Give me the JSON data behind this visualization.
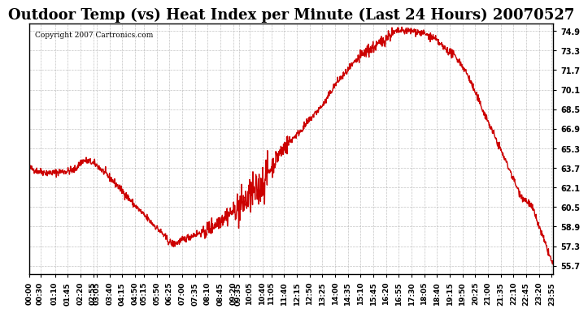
{
  "title": "Outdoor Temp (vs) Heat Index per Minute (Last 24 Hours) 20070527",
  "copyright_text": "Copyright 2007 Cartronics.com",
  "line_color": "#cc0000",
  "background_color": "#ffffff",
  "plot_background": "#ffffff",
  "grid_color": "#aaaaaa",
  "yticks": [
    55.7,
    57.3,
    58.9,
    60.5,
    62.1,
    63.7,
    65.3,
    66.9,
    68.5,
    70.1,
    71.7,
    73.3,
    74.9
  ],
  "ylim": [
    55.0,
    75.5
  ],
  "xlabel_rotation": 90,
  "title_fontsize": 13,
  "xtick_labels": [
    "00:00",
    "00:30",
    "01:10",
    "01:45",
    "02:20",
    "02:55",
    "03:05",
    "03:40",
    "04:15",
    "04:50",
    "05:15",
    "05:50",
    "06:25",
    "07:00",
    "07:35",
    "08:10",
    "08:45",
    "09:20",
    "09:35",
    "10:05",
    "10:40",
    "11:05",
    "11:40",
    "12:15",
    "12:50",
    "13:25",
    "14:00",
    "14:35",
    "15:10",
    "15:45",
    "16:20",
    "16:55",
    "17:30",
    "18:05",
    "18:40",
    "19:15",
    "19:50",
    "20:25",
    "21:00",
    "21:35",
    "22:10",
    "22:45",
    "23:20",
    "23:55"
  ],
  "line_width": 1.0,
  "seed": 42
}
